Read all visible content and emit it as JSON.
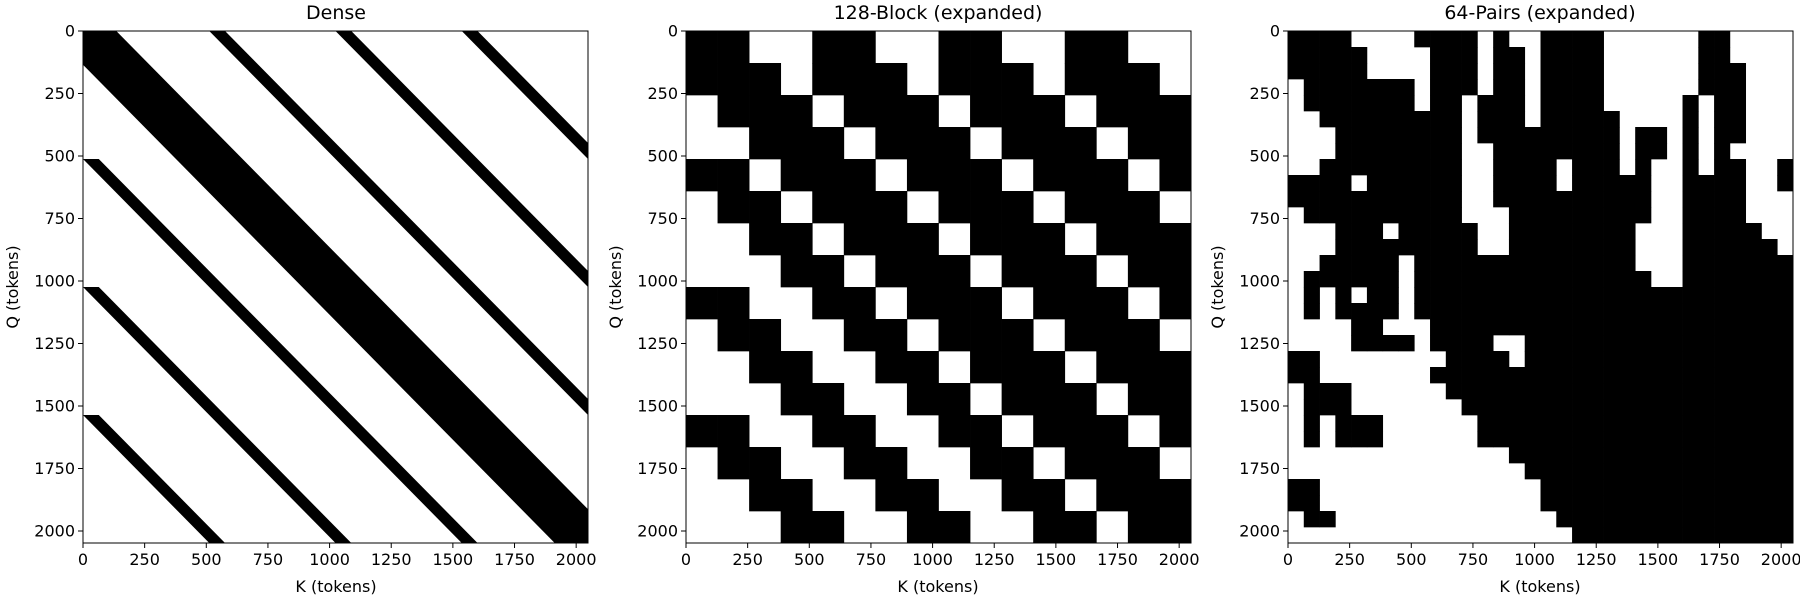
{
  "chart_data": [
    {
      "type": "heatmap",
      "title": "Dense",
      "xlabel": "K (tokens)",
      "ylabel": "Q (tokens)",
      "xlim": [
        0,
        2048
      ],
      "ylim": [
        2048,
        0
      ],
      "xticks": [
        0,
        250,
        500,
        750,
        1000,
        1250,
        1500,
        1750,
        2000
      ],
      "yticks": [
        0,
        250,
        500,
        750,
        1000,
        1250,
        1500,
        1750,
        2000
      ],
      "colormap": {
        "0": "#ffffff",
        "1": "#000000"
      },
      "mask_kind": "dense",
      "dense": {
        "main_band_width": 135,
        "period_q": 512,
        "period_k": 512,
        "stripe_width": 64
      }
    },
    {
      "type": "heatmap",
      "title": "128-Block (expanded)",
      "xlabel": "K (tokens)",
      "ylabel": "Q (tokens)",
      "xlim": [
        0,
        2048
      ],
      "ylim": [
        2048,
        0
      ],
      "xticks": [
        0,
        250,
        500,
        750,
        1000,
        1250,
        1500,
        1750,
        2000
      ],
      "yticks": [
        0,
        250,
        500,
        750,
        1000,
        1250,
        1500,
        1750,
        2000
      ],
      "colormap": {
        "0": "#ffffff",
        "1": "#000000"
      },
      "mask_kind": "grid",
      "block_size": 128,
      "grid": [
        "1100110011001100",
        "1110111011101110",
        "0111011101110111",
        "0011101110111011",
        "1101110111011101",
        "0110111011101110",
        "0011011101110111",
        "0001101110111011",
        "1100110111011101",
        "0110011011101110",
        "0011001101110111",
        "0001100110111011",
        "1100110011011101",
        "0110011001101110",
        "0011001100110111",
        "0001100110011011"
      ]
    },
    {
      "type": "heatmap",
      "title": "64-Pairs (expanded)",
      "xlabel": "K (tokens)",
      "ylabel": "Q (tokens)",
      "xlim": [
        0,
        2048
      ],
      "ylim": [
        2048,
        0
      ],
      "xticks": [
        0,
        250,
        500,
        750,
        1000,
        1250,
        1500,
        1750,
        2000
      ],
      "yticks": [
        0,
        250,
        500,
        750,
        1000,
        1250,
        1500,
        1750,
        2000
      ],
      "colormap": {
        "0": "#ffffff",
        "1": "#000000"
      },
      "mask_kind": "grid",
      "block_size": 64,
      "grid": [
        "11110000111101001111000000110000",
        "11111000011101101111000000110000",
        "11111000011101101111000000111000",
        "01111111011101101111000000111000",
        "01111111011011101111000001011000",
        "00111111111011101111100001011000",
        "00011111111011111111101101011000",
        "00011111111001111111101101010000",
        "00111111111001111011101001011001",
        "11110111111001111011111001111001",
        "11111111111001111111111001111000",
        "01111111111000111111111001111000",
        "00011101111100111111110001111100",
        "00011111111100111111110001111110",
        "00111110111111111111110001111111",
        "01111110111111111111111001111111",
        "01010110111111111111111111111111",
        "01011110111111111111111111111111",
        "00001100011111111111111111111111",
        "00001111011110011111111111111111",
        "11000000001111011111111111111111",
        "11000000011111111111111111111111",
        "01110000001111111111111111111111",
        "01110000000111111111111111111111",
        "01011100000011111111111111111111",
        "01011100000011111111111111111111",
        "00000000000000111111111111111111",
        "00000000000000011111111111111111",
        "11000000000000001111111111111111",
        "11000000000000001111111111111111",
        "01100000000000000111111111111111",
        "00000000000000000011111111111111"
      ]
    }
  ]
}
